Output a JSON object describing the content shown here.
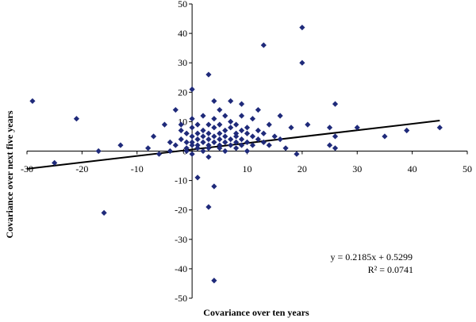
{
  "chart_data": {
    "type": "scatter",
    "title": "",
    "xlabel": "Covariance over ten years",
    "ylabel": "Covariance over next five years",
    "xlim": [
      -30,
      50
    ],
    "ylim": [
      -50,
      50
    ],
    "x_ticks": [
      -30,
      -20,
      -10,
      0,
      10,
      20,
      30,
      40,
      50
    ],
    "y_ticks": [
      -50,
      -40,
      -30,
      -20,
      -10,
      0,
      10,
      20,
      30,
      40,
      50
    ],
    "x_tick_labels": [
      "-30",
      "-20",
      "-10",
      "",
      "10",
      "20",
      "30",
      "40",
      "50"
    ],
    "y_tick_labels": [
      "-50",
      "-40",
      "-30",
      "-20",
      "-10",
      "0",
      "10",
      "20",
      "30",
      "40",
      "50"
    ],
    "grid": false,
    "marker_color": "#1f2a7a",
    "trendline": {
      "slope": 0.2185,
      "intercept": 0.5299,
      "x_range": [
        -30,
        45
      ],
      "color": "#000000",
      "equation_label": "y = 0.2185x + 0.5299",
      "r2_label": "R² = 0.0741"
    },
    "points": [
      [
        -29,
        17
      ],
      [
        -25,
        -4
      ],
      [
        -21,
        11
      ],
      [
        -17,
        0
      ],
      [
        -16,
        -21
      ],
      [
        -13,
        2
      ],
      [
        -8,
        1
      ],
      [
        -7,
        5
      ],
      [
        -6,
        -1
      ],
      [
        -5,
        9
      ],
      [
        -4,
        3
      ],
      [
        -4,
        0
      ],
      [
        -3,
        2
      ],
      [
        -3,
        14
      ],
      [
        -2,
        7
      ],
      [
        -2,
        9
      ],
      [
        -2,
        4
      ],
      [
        -1,
        1
      ],
      [
        -1,
        3
      ],
      [
        -1,
        6
      ],
      [
        -1,
        0
      ],
      [
        0,
        21
      ],
      [
        0,
        5
      ],
      [
        0,
        2
      ],
      [
        0,
        8
      ],
      [
        0,
        -1
      ],
      [
        0,
        3
      ],
      [
        0,
        11
      ],
      [
        1,
        -9
      ],
      [
        1,
        6
      ],
      [
        1,
        2
      ],
      [
        1,
        4
      ],
      [
        1,
        9
      ],
      [
        1,
        1
      ],
      [
        2,
        3
      ],
      [
        2,
        7
      ],
      [
        2,
        0
      ],
      [
        2,
        5
      ],
      [
        2,
        12
      ],
      [
        3,
        -2
      ],
      [
        3,
        26
      ],
      [
        3,
        4
      ],
      [
        3,
        9
      ],
      [
        3,
        6
      ],
      [
        3,
        2
      ],
      [
        3,
        -19
      ],
      [
        3,
        1
      ],
      [
        4,
        -44
      ],
      [
        4,
        8
      ],
      [
        4,
        17
      ],
      [
        4,
        3
      ],
      [
        4,
        5
      ],
      [
        4,
        11
      ],
      [
        4,
        -12
      ],
      [
        5,
        2
      ],
      [
        5,
        6
      ],
      [
        5,
        4
      ],
      [
        5,
        9
      ],
      [
        5,
        1
      ],
      [
        5,
        14
      ],
      [
        6,
        7
      ],
      [
        6,
        3
      ],
      [
        6,
        12
      ],
      [
        6,
        5
      ],
      [
        6,
        0
      ],
      [
        7,
        2
      ],
      [
        7,
        8
      ],
      [
        7,
        4
      ],
      [
        7,
        10
      ],
      [
        7,
        17
      ],
      [
        8,
        6
      ],
      [
        8,
        1
      ],
      [
        8,
        3
      ],
      [
        8,
        9
      ],
      [
        8,
        5
      ],
      [
        9,
        16
      ],
      [
        9,
        7
      ],
      [
        9,
        2
      ],
      [
        9,
        4
      ],
      [
        9,
        12
      ],
      [
        10,
        3
      ],
      [
        10,
        6
      ],
      [
        10,
        0
      ],
      [
        10,
        8
      ],
      [
        11,
        5
      ],
      [
        11,
        2
      ],
      [
        11,
        11
      ],
      [
        12,
        4
      ],
      [
        12,
        7
      ],
      [
        12,
        14
      ],
      [
        13,
        3
      ],
      [
        13,
        36
      ],
      [
        13,
        6
      ],
      [
        14,
        2
      ],
      [
        14,
        9
      ],
      [
        15,
        5
      ],
      [
        16,
        12
      ],
      [
        16,
        4
      ],
      [
        17,
        1
      ],
      [
        18,
        8
      ],
      [
        19,
        -1
      ],
      [
        20,
        30
      ],
      [
        20,
        42
      ],
      [
        21,
        9
      ],
      [
        25,
        2
      ],
      [
        25,
        8
      ],
      [
        26,
        1
      ],
      [
        26,
        5
      ],
      [
        26,
        16
      ],
      [
        30,
        8
      ],
      [
        35,
        5
      ],
      [
        39,
        7
      ],
      [
        45,
        8
      ]
    ]
  }
}
